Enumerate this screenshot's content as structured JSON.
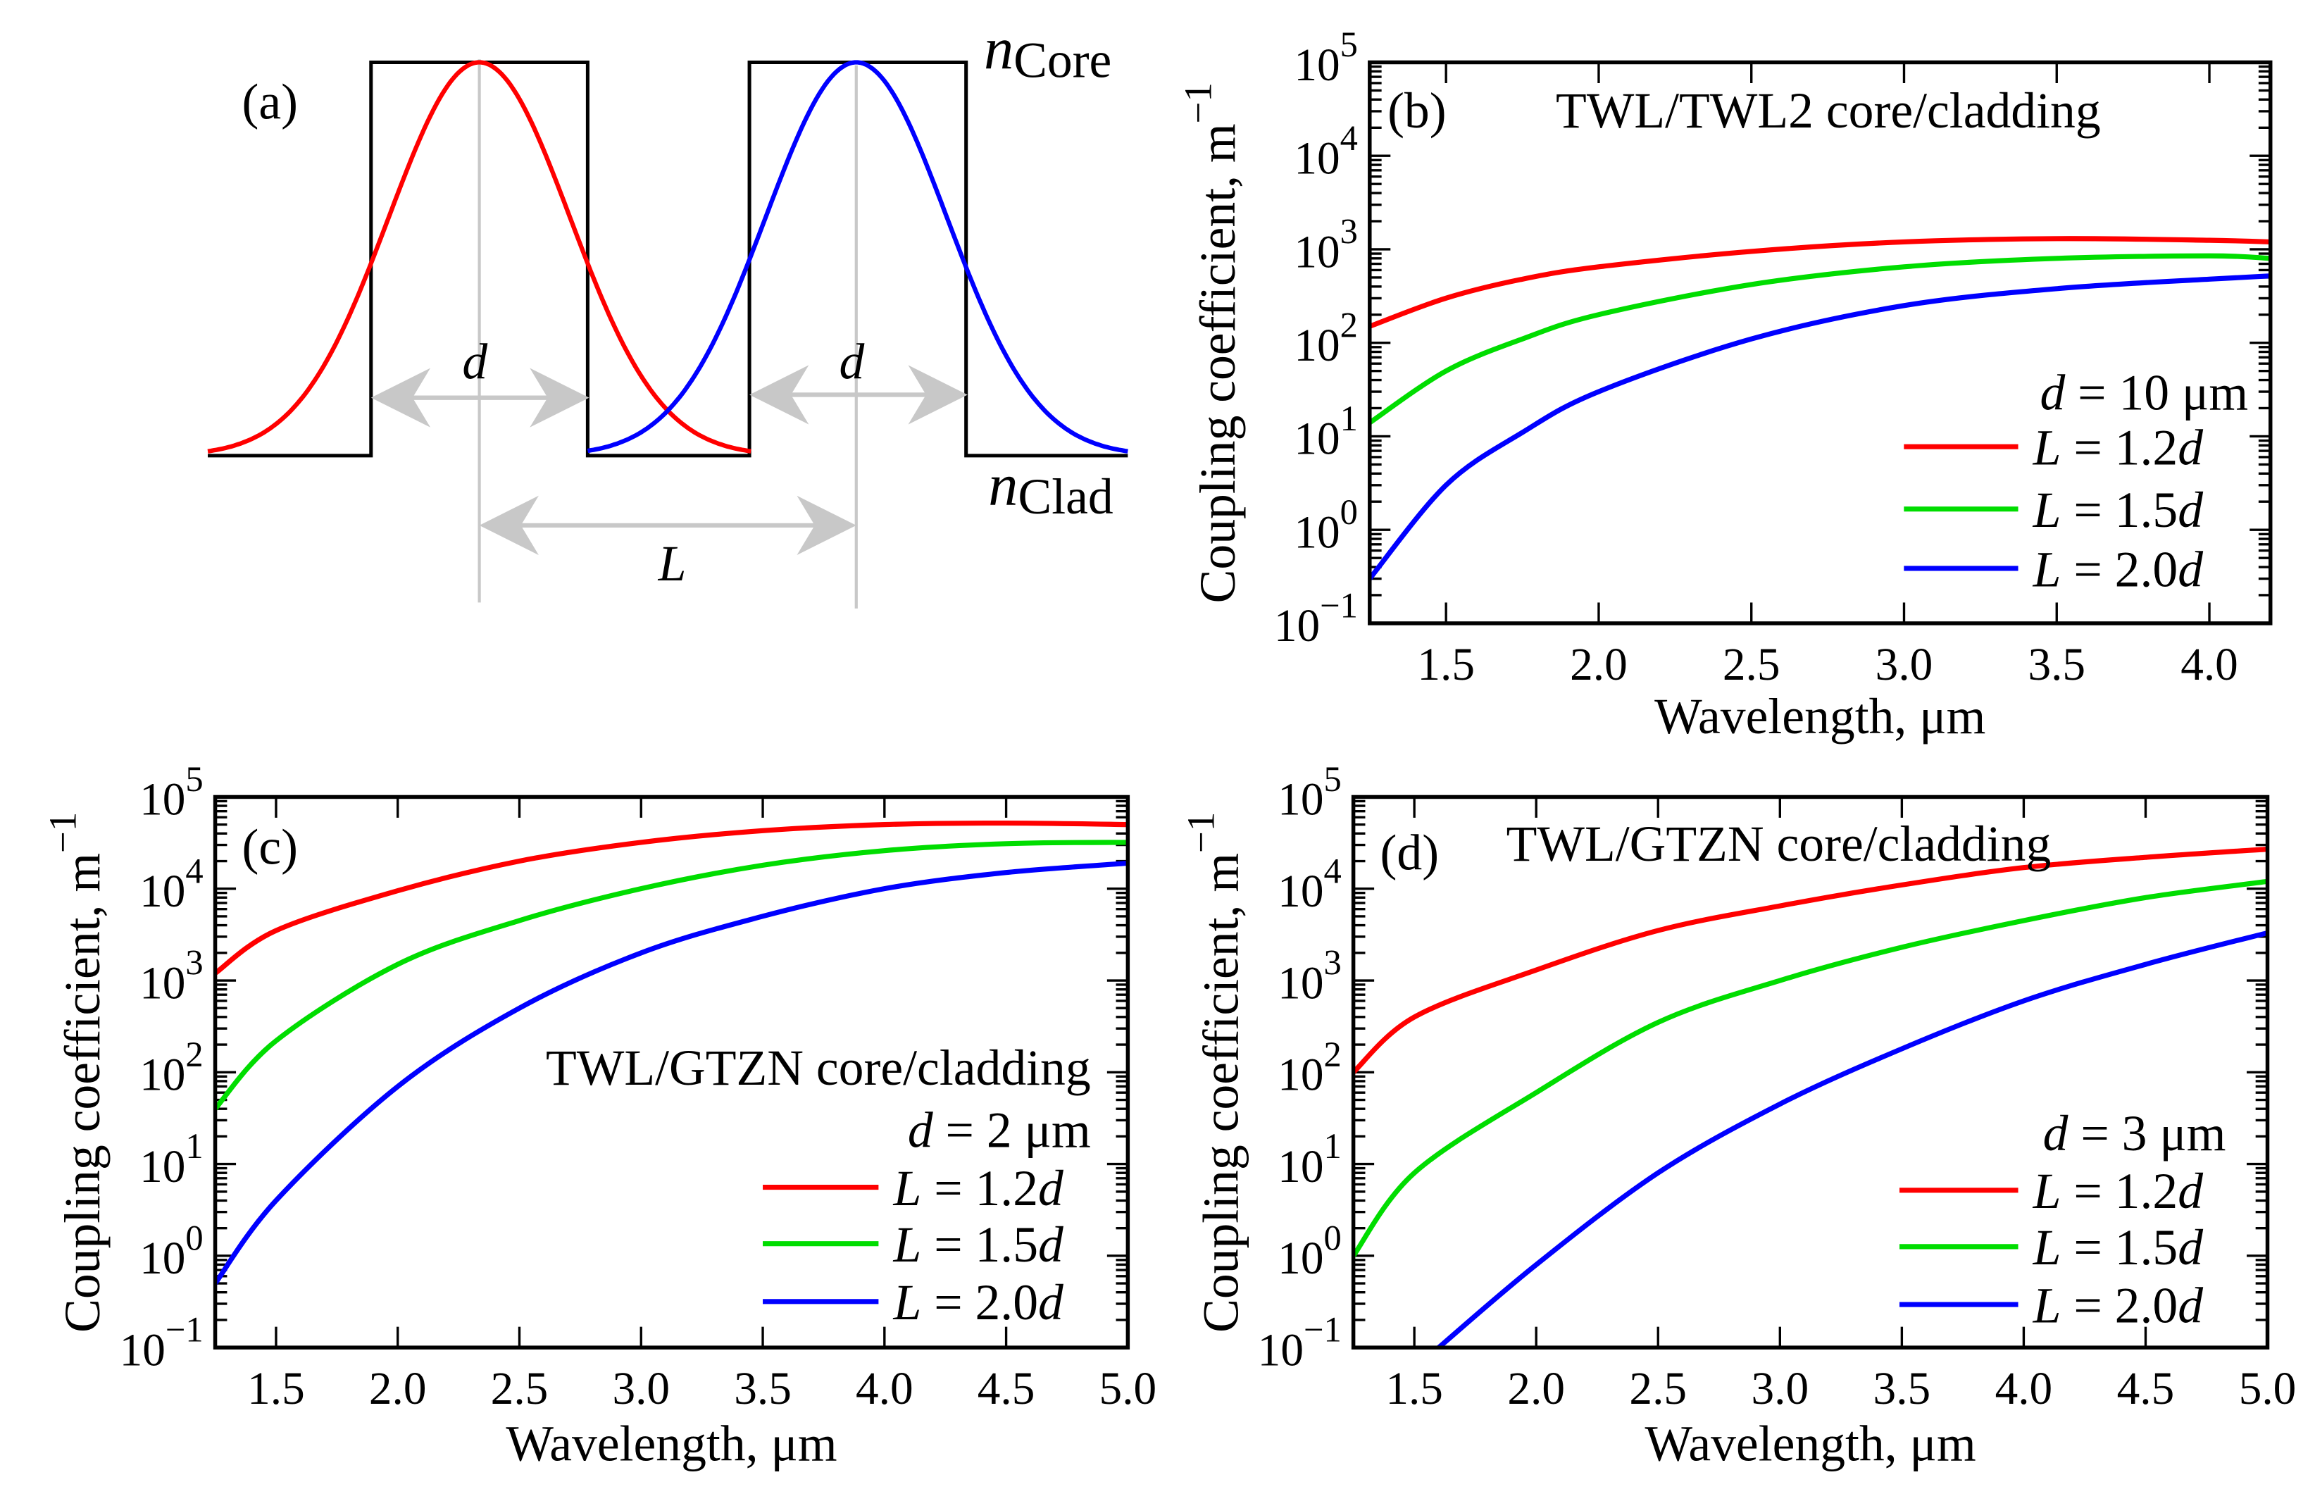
{
  "colors": {
    "red": "#ff0000",
    "green": "#00dd00",
    "blue": "#0000ff",
    "guide": "#c8c8c8",
    "axis": "#000000"
  },
  "diagram": {
    "panel_label": "(a)",
    "n_core": {
      "n": "n",
      "sub": "Core"
    },
    "n_clad": {
      "n": "n",
      "sub": "Clad"
    },
    "d_left": "d",
    "d_right": "d",
    "L": "L"
  },
  "chart_data": [
    {
      "id": "b",
      "type": "line",
      "panel_label": "(b)",
      "title": "TWL/TWL2 core/cladding",
      "param": {
        "var": "d",
        "text": " = 10 μm"
      },
      "xlabel": "Wavelength, μm",
      "ylabel": "Coupling coefficient, m",
      "ylabel_sup": "−1",
      "xlim": [
        1.25,
        4.2
      ],
      "ylim_exp": [
        -1,
        5
      ],
      "yscale": "log",
      "x_ticks": [
        "1.5",
        "2.0",
        "2.5",
        "3.0",
        "3.5",
        "4.0"
      ],
      "y_tick_base": "10",
      "y_tick_exps": [
        "-1",
        "0",
        "1",
        "2",
        "3",
        "4",
        "5"
      ],
      "legend": "right",
      "series": [
        {
          "name": "L = 1.2d",
          "color": "red",
          "x": [
            1.25,
            1.5,
            1.75,
            2.0,
            2.5,
            3.0,
            3.5,
            4.0,
            4.2
          ],
          "y": [
            150,
            300,
            480,
            650,
            950,
            1200,
            1300,
            1250,
            1200
          ]
        },
        {
          "name": "L = 1.5d",
          "color": "green",
          "x": [
            1.25,
            1.5,
            1.75,
            2.0,
            2.5,
            3.0,
            3.5,
            4.0,
            4.2
          ],
          "y": [
            14,
            50,
            110,
            200,
            420,
            650,
            800,
            850,
            800
          ]
        },
        {
          "name": "L = 2.0d",
          "color": "blue",
          "x": [
            1.25,
            1.5,
            1.75,
            2.0,
            2.5,
            3.0,
            3.5,
            4.0,
            4.2
          ],
          "y": [
            0.3,
            3,
            11,
            30,
            110,
            250,
            380,
            480,
            520
          ]
        }
      ]
    },
    {
      "id": "c",
      "type": "line",
      "panel_label": "(c)",
      "title": "TWL/GTZN core/cladding",
      "param": {
        "var": "d",
        "text": " = 2 μm"
      },
      "xlabel": "Wavelength, μm",
      "ylabel": "Coupling coefficient, m",
      "ylabel_sup": "−1",
      "xlim": [
        1.25,
        5.0
      ],
      "ylim_exp": [
        -1,
        5
      ],
      "yscale": "log",
      "x_ticks": [
        "1.5",
        "2.0",
        "2.5",
        "3.0",
        "3.5",
        "4.0",
        "4.5",
        "5.0"
      ],
      "y_tick_base": "10",
      "y_tick_exps": [
        "-1",
        "0",
        "1",
        "2",
        "3",
        "4",
        "5"
      ],
      "legend": "right",
      "series": [
        {
          "name": "L = 1.2d",
          "color": "red",
          "x": [
            1.25,
            1.5,
            2.0,
            2.5,
            3.0,
            3.5,
            4.0,
            4.5,
            5.0
          ],
          "y": [
            1200,
            3500,
            9500,
            20000,
            32000,
            43000,
            50000,
            52000,
            50000
          ]
        },
        {
          "name": "L = 1.5d",
          "color": "green",
          "x": [
            1.25,
            1.5,
            2.0,
            2.5,
            3.0,
            3.5,
            4.0,
            4.5,
            5.0
          ],
          "y": [
            40,
            220,
            1500,
            4500,
            10000,
            18000,
            26000,
            31000,
            32000
          ]
        },
        {
          "name": "L = 2.0d",
          "color": "blue",
          "x": [
            1.25,
            1.5,
            2.0,
            2.5,
            3.0,
            3.5,
            4.0,
            4.5,
            5.0
          ],
          "y": [
            0.5,
            4,
            70,
            500,
            2000,
            5000,
            10000,
            15000,
            19000
          ]
        }
      ]
    },
    {
      "id": "d",
      "type": "line",
      "panel_label": "(d)",
      "title": "TWL/GTZN core/cladding",
      "param": {
        "var": "d",
        "text": " = 3 μm"
      },
      "xlabel": "Wavelength, μm",
      "ylabel": "Coupling coefficient, m",
      "ylabel_sup": "−1",
      "xlim": [
        1.25,
        5.0
      ],
      "ylim_exp": [
        -1,
        5
      ],
      "yscale": "log",
      "x_ticks": [
        "1.5",
        "2.0",
        "2.5",
        "3.0",
        "3.5",
        "4.0",
        "4.5",
        "5.0"
      ],
      "y_tick_base": "10",
      "y_tick_exps": [
        "-1",
        "0",
        "1",
        "2",
        "3",
        "4",
        "5"
      ],
      "legend": "right",
      "series": [
        {
          "name": "L = 1.2d",
          "color": "red",
          "x": [
            1.25,
            1.5,
            2.0,
            2.5,
            3.0,
            3.5,
            4.0,
            4.5,
            5.0
          ],
          "y": [
            100,
            400,
            1300,
            3500,
            6500,
            11000,
            17000,
            22000,
            27000
          ]
        },
        {
          "name": "L = 1.5d",
          "color": "green",
          "x": [
            1.25,
            1.5,
            2.0,
            2.5,
            3.0,
            3.5,
            4.0,
            4.5,
            5.0
          ],
          "y": [
            1,
            8,
            60,
            350,
            1000,
            2300,
            4500,
            8000,
            12000
          ]
        },
        {
          "name": "L = 2.0d",
          "color": "blue",
          "x": [
            1.6,
            2.0,
            2.5,
            3.0,
            3.5,
            4.0,
            4.5,
            5.0
          ],
          "y": [
            0.1,
            0.8,
            8,
            45,
            180,
            600,
            1500,
            3300
          ]
        }
      ]
    }
  ]
}
